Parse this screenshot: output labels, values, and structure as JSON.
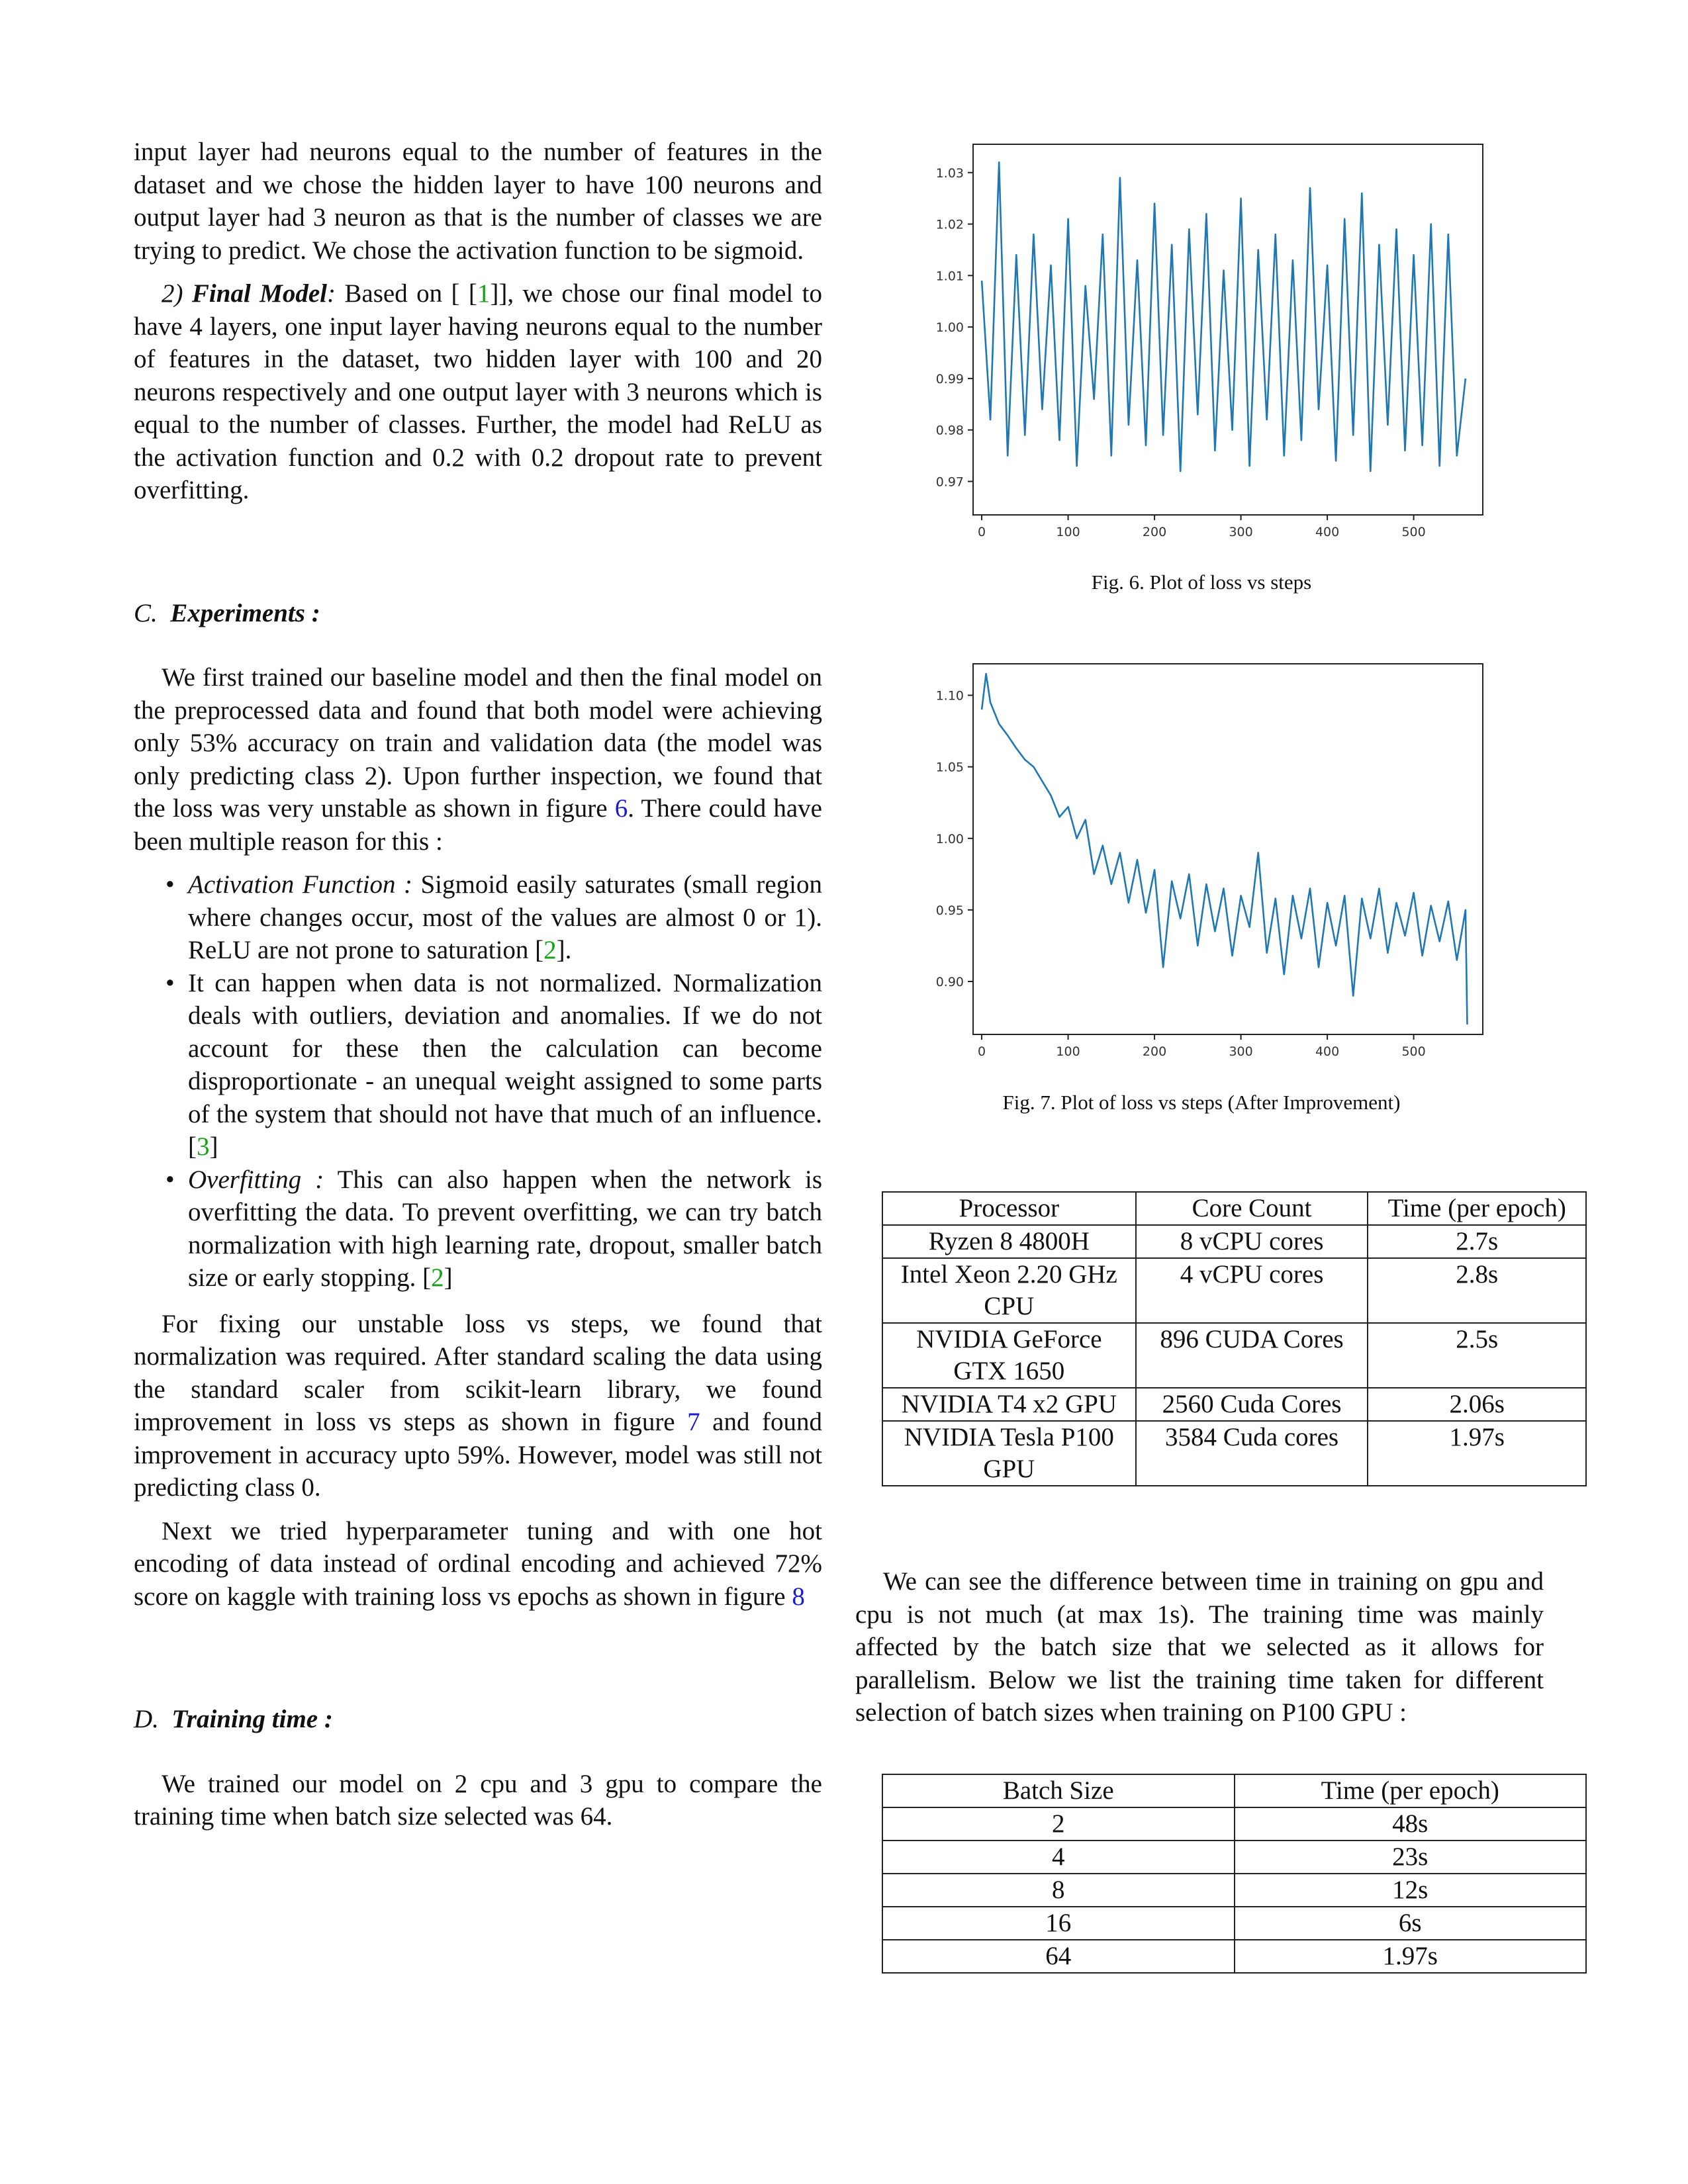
{
  "left": {
    "p1": "input layer had neurons equal to the number of features in the dataset and we chose the hidden layer to have 100 neurons and output layer had 3 neuron as that is the number of classes we are trying to predict. We chose the activation function to be sigmoid.",
    "final_model": {
      "num": "2)",
      "title": "Final Model",
      "text_a": " Based on [ [",
      "cite": "1",
      "text_b": "]], we chose our final model to have 4 layers, one input layer having neurons equal to the number of features in the dataset, two hidden layer with 100 and 20 neurons respectively and one output layer with 3 neurons which is equal to the number of classes. Further, the model had ReLU as the activation function and 0.2 with 0.2 dropout rate to prevent overfitting."
    },
    "sec_c": {
      "letter": "C.",
      "title": "Experiments :"
    },
    "p_exp_a": "We first trained our baseline model and then the final model on the preprocessed data and found that both model were achieving only 53% accuracy on train and validation data (the model was only predicting class 2). Upon further inspection, we found that the loss was very unstable as shown in figure ",
    "p_exp_ref": "6",
    "p_exp_b": ". There could have been multiple reason for this :",
    "bullets": [
      {
        "label": "Activation Function :",
        "text_a": "  Sigmoid easily saturates (small region where changes occur, most of the values are almost 0 or 1). ReLU are not prone to saturation [",
        "cite": "2",
        "text_b": "]."
      },
      {
        "label": "",
        "text_a": "It can happen when data is not normalized. Normalization deals with outliers, deviation and anomalies. If we do not account for these then the calculation can become disproportionate - an unequal weight assigned to some parts of the system that should not have that much of an influence. [",
        "cite": "3",
        "text_b": "]"
      },
      {
        "label": "Overfitting :",
        "text_a": "  This can also happen when the network is overfitting the data. To prevent overfitting, we can try batch normalization with high learning rate, dropout, smaller batch size or early stopping. [",
        "cite": "2",
        "text_b": "]"
      }
    ],
    "p_fix_a": "For fixing our unstable loss vs steps, we found that normalization was required. After standard scaling the data using the standard scaler from scikit-learn library, we found improvement in loss vs steps as shown in figure ",
    "p_fix_ref": "7",
    "p_fix_b": " and found improvement in accuracy upto 59%. However, model was still not predicting class 0.",
    "p_next_a": "Next we tried hyperparameter tuning and with one hot encoding of data instead of ordinal encoding and achieved 72% score on kaggle with training loss vs epochs as shown in figure ",
    "p_next_ref": "8",
    "sec_d": {
      "letter": "D.",
      "title": "Training time :"
    },
    "p_train": "We trained our model on 2 cpu and 3 gpu to compare the training time when batch size selected was 64."
  },
  "fig6": {
    "caption": "Fig. 6.  Plot of loss vs steps"
  },
  "fig7": {
    "caption": "Fig. 7.  Plot of loss vs steps (After Improvement)"
  },
  "chart_data": [
    {
      "type": "line",
      "title": "",
      "xlabel": "",
      "ylabel": "",
      "xlim": [
        -10,
        580
      ],
      "ylim": [
        0.9635,
        1.0355
      ],
      "xticks": [
        0,
        100,
        200,
        300,
        400,
        500
      ],
      "yticks": [
        0.97,
        0.98,
        0.99,
        1.0,
        1.01,
        1.02,
        1.03
      ],
      "ytick_labels": [
        "0.97",
        "0.98",
        "0.99",
        "1.00",
        "1.01",
        "1.02",
        "1.03"
      ],
      "grid": false,
      "color": "#1f77b4",
      "x": [
        0,
        10,
        20,
        30,
        40,
        50,
        60,
        70,
        80,
        90,
        100,
        110,
        120,
        130,
        140,
        150,
        160,
        170,
        180,
        190,
        200,
        210,
        220,
        230,
        240,
        250,
        260,
        270,
        280,
        290,
        300,
        310,
        320,
        330,
        340,
        350,
        360,
        370,
        380,
        390,
        400,
        410,
        420,
        430,
        440,
        450,
        460,
        470,
        480,
        490,
        500,
        510,
        520,
        530,
        540,
        550,
        560
      ],
      "series": [
        {
          "values": [
            1.009,
            0.982,
            1.032,
            0.975,
            1.014,
            0.979,
            1.018,
            0.984,
            1.012,
            0.978,
            1.021,
            0.973,
            1.008,
            0.986,
            1.018,
            0.975,
            1.029,
            0.981,
            1.013,
            0.977,
            1.024,
            0.979,
            1.016,
            0.972,
            1.019,
            0.983,
            1.022,
            0.976,
            1.011,
            0.98,
            1.025,
            0.973,
            1.015,
            0.982,
            1.018,
            0.975,
            1.013,
            0.978,
            1.027,
            0.984,
            1.012,
            0.974,
            1.021,
            0.979,
            1.026,
            0.972,
            1.016,
            0.981,
            1.019,
            0.976,
            1.014,
            0.977,
            1.02,
            0.973,
            1.018,
            0.975,
            0.99
          ]
        }
      ]
    },
    {
      "type": "line",
      "title": "",
      "xlabel": "",
      "ylabel": "",
      "xlim": [
        -10,
        580
      ],
      "ylim": [
        0.863,
        1.122
      ],
      "xticks": [
        0,
        100,
        200,
        300,
        400,
        500
      ],
      "yticks": [
        0.9,
        0.95,
        1.0,
        1.05,
        1.1
      ],
      "ytick_labels": [
        "0.90",
        "0.95",
        "1.00",
        "1.05",
        "1.10"
      ],
      "grid": false,
      "color": "#1f77b4",
      "x": [
        0,
        5,
        10,
        20,
        30,
        40,
        50,
        60,
        70,
        80,
        90,
        100,
        110,
        120,
        130,
        140,
        150,
        160,
        170,
        180,
        190,
        200,
        210,
        220,
        230,
        240,
        250,
        260,
        270,
        280,
        290,
        300,
        310,
        320,
        330,
        340,
        350,
        360,
        370,
        380,
        390,
        400,
        410,
        420,
        430,
        440,
        450,
        460,
        470,
        480,
        490,
        500,
        510,
        520,
        530,
        540,
        550,
        560,
        562
      ],
      "series": [
        {
          "values": [
            1.09,
            1.115,
            1.095,
            1.08,
            1.072,
            1.063,
            1.055,
            1.05,
            1.04,
            1.03,
            1.015,
            1.022,
            1.0,
            1.013,
            0.975,
            0.995,
            0.968,
            0.99,
            0.955,
            0.985,
            0.948,
            0.978,
            0.91,
            0.97,
            0.944,
            0.975,
            0.925,
            0.968,
            0.935,
            0.965,
            0.918,
            0.96,
            0.938,
            0.99,
            0.92,
            0.958,
            0.905,
            0.96,
            0.93,
            0.965,
            0.91,
            0.955,
            0.925,
            0.96,
            0.89,
            0.958,
            0.93,
            0.965,
            0.92,
            0.955,
            0.932,
            0.962,
            0.918,
            0.953,
            0.928,
            0.956,
            0.915,
            0.95,
            0.87
          ]
        }
      ]
    }
  ],
  "table1": {
    "headers": [
      "Processor",
      "Core Count",
      "Time (per epoch)"
    ],
    "rows": [
      [
        "Ryzen 8 4800H",
        "8 vCPU cores",
        "2.7s"
      ],
      [
        "Intel Xeon 2.20 GHz CPU",
        "4 vCPU cores",
        "2.8s"
      ],
      [
        "NVIDIA GeForce GTX 1650",
        "896 CUDA Cores",
        "2.5s"
      ],
      [
        "NVIDIA T4 x2 GPU",
        "2560 Cuda Cores",
        "2.06s"
      ],
      [
        "NVIDIA Tesla P100 GPU",
        "3584 Cuda cores",
        "1.97s"
      ]
    ]
  },
  "right_para": "We can see the difference between time in training on gpu and cpu is not much (at max 1s). The training time was mainly affected by the batch size that we selected as it allows for parallelism. Below we list the training time taken for different selection of batch sizes when training on P100 GPU :",
  "table2": {
    "headers": [
      "Batch Size",
      "Time (per epoch)"
    ],
    "rows": [
      [
        "2",
        "48s"
      ],
      [
        "4",
        "23s"
      ],
      [
        "8",
        "12s"
      ],
      [
        "16",
        "6s"
      ],
      [
        "64",
        "1.97s"
      ]
    ]
  }
}
